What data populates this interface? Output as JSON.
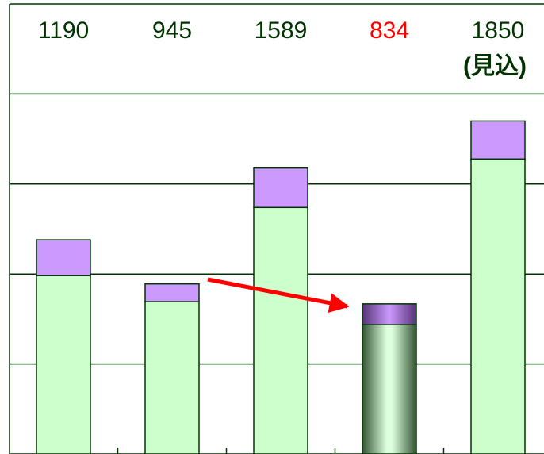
{
  "chart_data": {
    "type": "stacked_bar",
    "totals": [
      1190,
      945,
      1589,
      834,
      1850
    ],
    "annotation": "(見込)",
    "series": [
      {
        "color": "#ccffcc",
        "values": [
          991,
          846,
          1370,
          718,
          1639
        ]
      },
      {
        "color": "#cc99ff",
        "values": [
          199,
          99,
          219,
          116,
          211
        ]
      }
    ],
    "ylim": [
      0,
      2500
    ],
    "yticks": [
      0,
      500,
      1000,
      1500,
      2000,
      2500
    ],
    "grid": true,
    "highlight": 3,
    "highlight_color": "#ff0000",
    "text_color": "#003300",
    "edge_color": "#003300"
  }
}
